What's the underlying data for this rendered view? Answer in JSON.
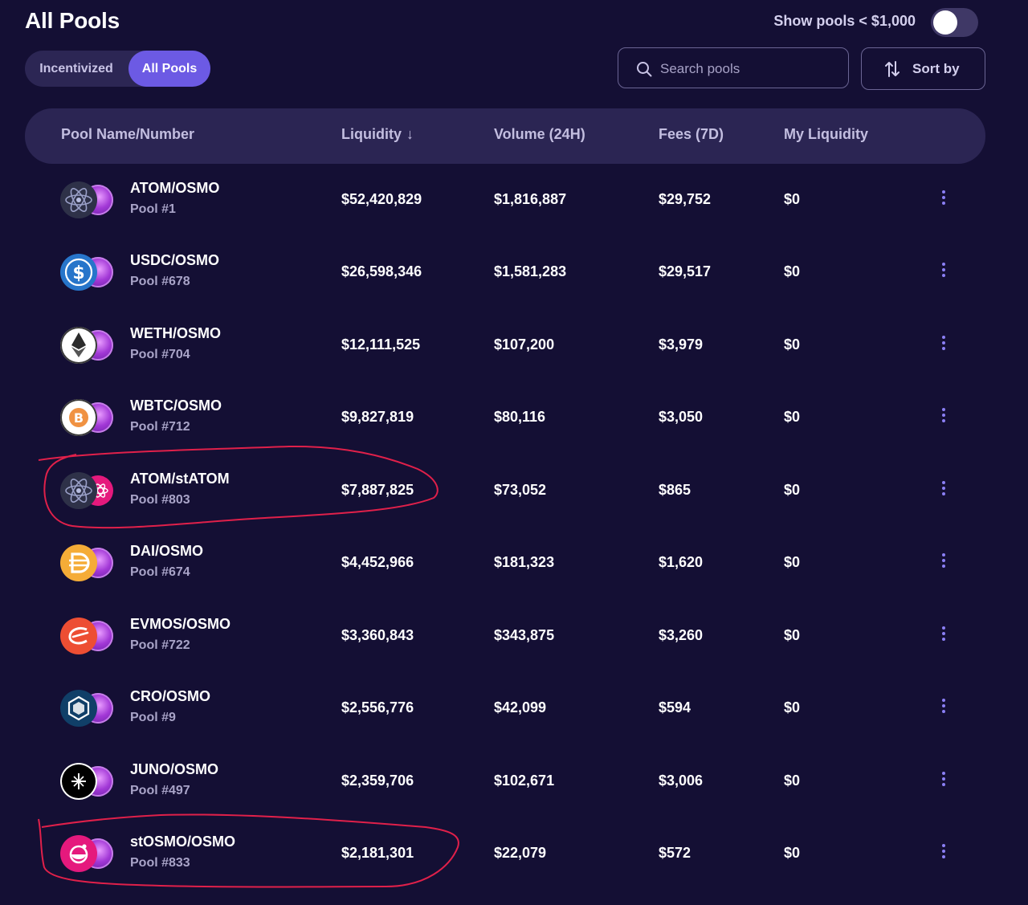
{
  "header": {
    "title": "All Pools",
    "toggle_label": "Show pools < $1,000",
    "toggle_on": false
  },
  "tabs": [
    {
      "label": "Incentivized",
      "active": false
    },
    {
      "label": "All Pools",
      "active": true
    }
  ],
  "search": {
    "placeholder": "Search pools",
    "value": ""
  },
  "sort": {
    "label": "Sort by"
  },
  "table": {
    "columns": {
      "pool": "Pool Name/Number",
      "liquidity": "Liquidity",
      "liquidity_sort_arrow": "↓",
      "volume": "Volume (24H)",
      "fees": "Fees (7D)",
      "my_liquidity": "My Liquidity"
    },
    "rows": [
      {
        "name": "ATOM/OSMO",
        "number": "Pool #1",
        "liquidity": "$52,420,829",
        "volume": "$1,816,887",
        "fees": "$29,752",
        "my_liquidity": "$0",
        "icon": "atom-icon"
      },
      {
        "name": "USDC/OSMO",
        "number": "Pool #678",
        "liquidity": "$26,598,346",
        "volume": "$1,581,283",
        "fees": "$29,517",
        "my_liquidity": "$0",
        "icon": "usdc-icon"
      },
      {
        "name": "WETH/OSMO",
        "number": "Pool #704",
        "liquidity": "$12,111,525",
        "volume": "$107,200",
        "fees": "$3,979",
        "my_liquidity": "$0",
        "icon": "weth-icon"
      },
      {
        "name": "WBTC/OSMO",
        "number": "Pool #712",
        "liquidity": "$9,827,819",
        "volume": "$80,116",
        "fees": "$3,050",
        "my_liquidity": "$0",
        "icon": "wbtc-icon"
      },
      {
        "name": "ATOM/stATOM",
        "number": "Pool #803",
        "liquidity": "$7,887,825",
        "volume": "$73,052",
        "fees": "$865",
        "my_liquidity": "$0",
        "icon": "atom-icon"
      },
      {
        "name": "DAI/OSMO",
        "number": "Pool #674",
        "liquidity": "$4,452,966",
        "volume": "$181,323",
        "fees": "$1,620",
        "my_liquidity": "$0",
        "icon": "dai-icon"
      },
      {
        "name": "EVMOS/OSMO",
        "number": "Pool #722",
        "liquidity": "$3,360,843",
        "volume": "$343,875",
        "fees": "$3,260",
        "my_liquidity": "$0",
        "icon": "evmos-icon"
      },
      {
        "name": "CRO/OSMO",
        "number": "Pool #9",
        "liquidity": "$2,556,776",
        "volume": "$42,099",
        "fees": "$594",
        "my_liquidity": "$0",
        "icon": "cro-icon"
      },
      {
        "name": "JUNO/OSMO",
        "number": "Pool #497",
        "liquidity": "$2,359,706",
        "volume": "$102,671",
        "fees": "$3,006",
        "my_liquidity": "$0",
        "icon": "juno-icon"
      },
      {
        "name": "stOSMO/OSMO",
        "number": "Pool #833",
        "liquidity": "$2,181,301",
        "volume": "$22,079",
        "fees": "$572",
        "my_liquidity": "$0",
        "icon": "stosmo-icon"
      }
    ]
  },
  "colors": {
    "background": "#140f34",
    "accent": "#6c5ae4",
    "header_row": "#2b2553",
    "annotation": "#e0204a"
  }
}
